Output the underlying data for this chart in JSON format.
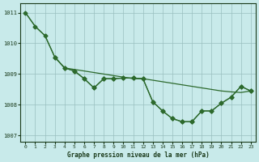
{
  "title": "Graphe pression niveau de la mer (hPa)",
  "background_color": "#c8eaea",
  "plot_background": "#c8eaea",
  "line_color": "#2d6a2d",
  "grid_color": "#9abfbf",
  "text_color": "#1a3a1a",
  "xlim": [
    -0.5,
    23.5
  ],
  "ylim": [
    1006.8,
    1011.3
  ],
  "yticks": [
    1007,
    1008,
    1009,
    1010,
    1011
  ],
  "xticks": [
    0,
    1,
    2,
    3,
    4,
    5,
    6,
    7,
    8,
    9,
    10,
    11,
    12,
    13,
    14,
    15,
    16,
    17,
    18,
    19,
    20,
    21,
    22,
    23
  ],
  "line1_x": [
    0,
    1,
    2,
    3,
    4,
    5,
    6,
    7,
    8,
    9,
    10,
    11,
    12,
    13,
    14,
    15,
    16,
    17,
    18,
    19,
    20,
    21,
    22,
    23
  ],
  "line1_y": [
    1011.0,
    1010.55,
    1010.25,
    1009.55,
    1009.2,
    1009.15,
    1009.1,
    1009.05,
    1009.0,
    1008.95,
    1008.9,
    1008.85,
    1008.85,
    1008.8,
    1008.75,
    1008.7,
    1008.65,
    1008.6,
    1008.55,
    1008.5,
    1008.45,
    1008.42,
    1008.4,
    1008.45
  ],
  "line2_x": [
    0,
    1,
    2,
    3,
    4,
    5,
    6,
    7,
    8,
    9,
    10,
    11,
    12,
    13,
    14,
    15,
    16,
    17,
    18,
    19,
    20,
    21,
    22,
    23
  ],
  "line2_y": [
    1011.0,
    1010.55,
    1010.25,
    1009.55,
    1009.2,
    1009.1,
    1008.85,
    1008.55,
    1008.85,
    1008.85,
    1008.87,
    1008.87,
    1008.85,
    1008.1,
    1007.8,
    1007.55,
    1007.45,
    1007.45,
    1007.8,
    1007.8,
    1008.05,
    1008.25,
    1008.6,
    1008.45
  ],
  "line3_x": [
    3,
    4,
    5,
    6,
    7,
    8,
    9,
    10,
    11,
    12,
    13,
    14,
    15,
    16,
    17,
    18,
    19,
    20,
    21,
    22,
    23
  ],
  "line3_y": [
    1009.55,
    1009.2,
    1009.1,
    1008.85,
    1008.55,
    1008.85,
    1008.85,
    1008.87,
    1008.87,
    1008.85,
    1008.1,
    1007.8,
    1007.55,
    1007.45,
    1007.45,
    1007.8,
    1007.8,
    1008.05,
    1008.25,
    1008.6,
    1008.45
  ],
  "marker": "D",
  "markersize": 2.5,
  "linewidth": 0.9
}
